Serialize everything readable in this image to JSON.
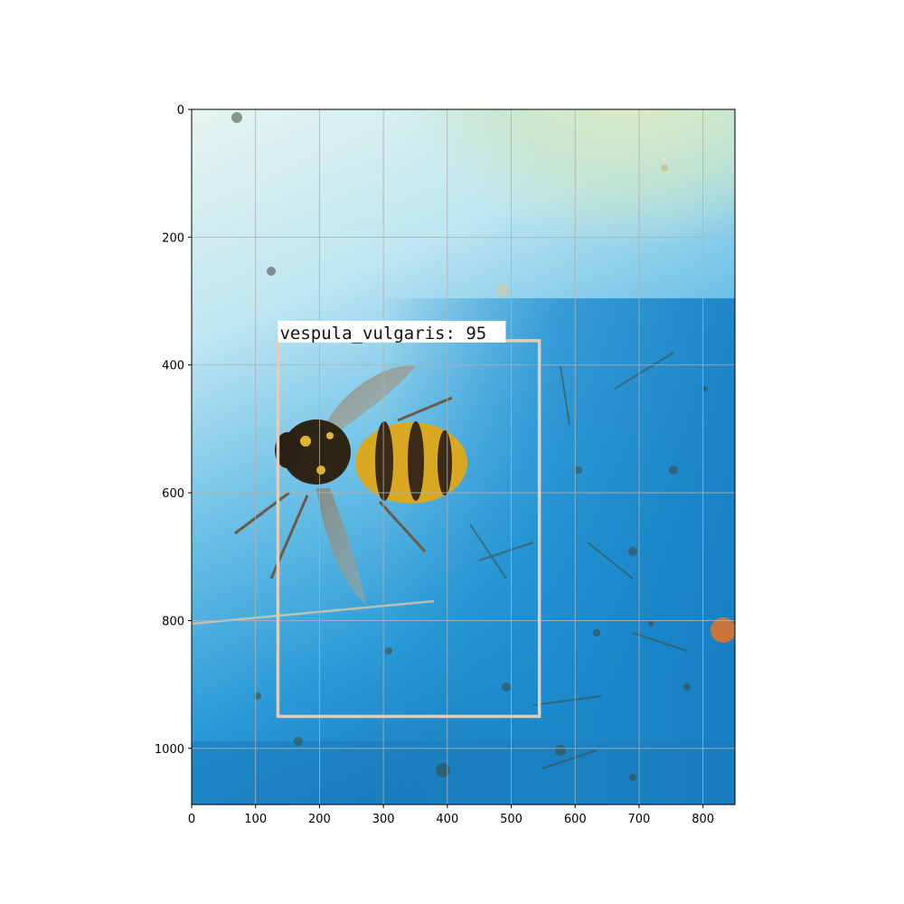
{
  "image": {
    "description_name": "wasp-on-blue-trap",
    "width_units": 850,
    "height_units": 1088
  },
  "axes": {
    "x_ticks": [
      0,
      100,
      200,
      300,
      400,
      500,
      600,
      700,
      800
    ],
    "y_ticks": [
      0,
      200,
      400,
      600,
      800,
      1000
    ],
    "xlim": [
      0,
      850
    ],
    "ylim": [
      1088,
      0
    ],
    "grid": true,
    "grid_color": "#b0b0b0"
  },
  "detection": {
    "label": "vespula_vulgaris: 95",
    "box": {
      "x0": 135,
      "y0": 362,
      "x1": 544,
      "y1": 950
    },
    "box_color": "#e2cdb8",
    "label_bg": "#ffffff"
  },
  "colors": {
    "water_blue": "#1f8fd0",
    "pale_cyan": "#cdeef6",
    "sun_glare": "#dfe8b8",
    "wasp_yellow": "#e2b42c"
  }
}
